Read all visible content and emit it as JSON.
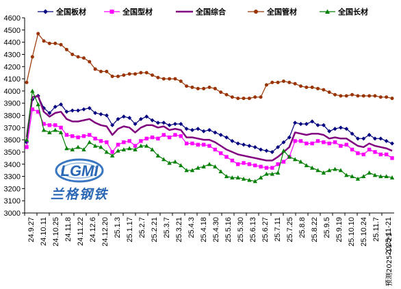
{
  "chart_data": {
    "type": "line",
    "ylim": [
      3000,
      4600
    ],
    "yticks": [
      3000,
      3100,
      3200,
      3300,
      3400,
      3500,
      3600,
      3700,
      3800,
      3900,
      4000,
      4100,
      4200,
      4300,
      4400,
      4500,
      4600
    ],
    "grid": false,
    "legend_position": "top",
    "xtick_labels": [
      "24.9.27",
      "24.10.11",
      "24.10.25",
      "24.11.8",
      "24.11.22",
      "24.12.6",
      "24.12.20",
      "25.1.3",
      "25.1.17",
      "25.2.7",
      "25.2.21",
      "25.3.7",
      "25.3.21",
      "25.4.3",
      "25.4.18",
      "25.4.30",
      "25.5.16",
      "25.5.30",
      "25.6.13",
      "25.6.27",
      "25.7.11",
      "25.7.25",
      "25.8.8",
      "25.8.22",
      "25.9.5",
      "25.9.19",
      "25.10.10",
      "25.10.24",
      "25.11.7",
      "2025-11-21"
    ],
    "source_note": "预测2025-11-21",
    "series": [
      {
        "name": "全国板材",
        "color": "#000080",
        "marker": "diamond",
        "line_width": 1.2,
        "values": [
          3580,
          3930,
          3960,
          3860,
          3820,
          3870,
          3890,
          3830,
          3840,
          3840,
          3850,
          3860,
          3820,
          3810,
          3800,
          3720,
          3770,
          3790,
          3780,
          3730,
          3770,
          3790,
          3760,
          3740,
          3740,
          3720,
          3730,
          3730,
          3690,
          3680,
          3690,
          3670,
          3680,
          3660,
          3640,
          3620,
          3590,
          3570,
          3560,
          3550,
          3540,
          3520,
          3510,
          3500,
          3540,
          3580,
          3620,
          3740,
          3730,
          3730,
          3750,
          3720,
          3720,
          3670,
          3690,
          3700,
          3690,
          3650,
          3610,
          3610,
          3640,
          3610,
          3610,
          3590,
          3570
        ]
      },
      {
        "name": "全国型材",
        "color": "#ff00ff",
        "marker": "square",
        "line_width": 1.2,
        "values": [
          3540,
          3850,
          3830,
          3730,
          3720,
          3720,
          3700,
          3640,
          3630,
          3620,
          3630,
          3640,
          3610,
          3590,
          3580,
          3500,
          3560,
          3580,
          3590,
          3550,
          3590,
          3610,
          3620,
          3610,
          3640,
          3620,
          3640,
          3630,
          3570,
          3570,
          3560,
          3560,
          3550,
          3520,
          3490,
          3460,
          3430,
          3400,
          3410,
          3400,
          3390,
          3380,
          3370,
          3370,
          3400,
          3420,
          3460,
          3590,
          3590,
          3570,
          3570,
          3590,
          3580,
          3570,
          3580,
          3550,
          3560,
          3520,
          3490,
          3480,
          3520,
          3500,
          3480,
          3480,
          3450
        ]
      },
      {
        "name": "全国综合",
        "color": "#800080",
        "marker": "none",
        "line_width": 2.5,
        "values": [
          3620,
          3950,
          3960,
          3830,
          3790,
          3820,
          3830,
          3770,
          3750,
          3750,
          3760,
          3770,
          3740,
          3720,
          3710,
          3640,
          3690,
          3710,
          3700,
          3660,
          3700,
          3720,
          3720,
          3700,
          3710,
          3680,
          3690,
          3680,
          3620,
          3620,
          3610,
          3600,
          3600,
          3580,
          3550,
          3520,
          3500,
          3480,
          3470,
          3460,
          3450,
          3440,
          3430,
          3430,
          3460,
          3500,
          3540,
          3660,
          3650,
          3640,
          3650,
          3650,
          3640,
          3610,
          3620,
          3610,
          3610,
          3580,
          3550,
          3540,
          3570,
          3550,
          3540,
          3530,
          3510
        ]
      },
      {
        "name": "全国管材",
        "color": "#993300",
        "marker": "circle",
        "line_width": 1.2,
        "values": [
          4070,
          4280,
          4470,
          4410,
          4390,
          4390,
          4380,
          4340,
          4300,
          4280,
          4270,
          4240,
          4180,
          4160,
          4160,
          4120,
          4120,
          4130,
          4140,
          4140,
          4150,
          4150,
          4130,
          4110,
          4100,
          4100,
          4100,
          4080,
          4040,
          4030,
          4020,
          4020,
          4030,
          4020,
          3990,
          3970,
          3950,
          3940,
          3940,
          3940,
          3950,
          3950,
          4050,
          4070,
          4070,
          4080,
          4070,
          4060,
          4040,
          4030,
          4030,
          4020,
          4010,
          3990,
          3970,
          3960,
          3960,
          3970,
          3960,
          3960,
          3960,
          3960,
          3950,
          3950,
          3940
        ]
      },
      {
        "name": "全国长材",
        "color": "#008000",
        "marker": "triangle",
        "line_width": 1.2,
        "values": [
          3600,
          4000,
          3890,
          3680,
          3660,
          3680,
          3660,
          3530,
          3520,
          3540,
          3520,
          3580,
          3550,
          3540,
          3500,
          3470,
          3510,
          3520,
          3530,
          3520,
          3550,
          3550,
          3520,
          3470,
          3440,
          3410,
          3420,
          3390,
          3350,
          3350,
          3370,
          3380,
          3400,
          3380,
          3340,
          3300,
          3290,
          3290,
          3280,
          3270,
          3260,
          3290,
          3320,
          3320,
          3330,
          3510,
          3460,
          3440,
          3420,
          3390,
          3370,
          3350,
          3330,
          3350,
          3360,
          3350,
          3310,
          3300,
          3280,
          3300,
          3330,
          3310,
          3300,
          3300,
          3290
        ]
      }
    ]
  },
  "logo": {
    "brand": "LGMI",
    "name_cn": "兰格钢铁"
  }
}
